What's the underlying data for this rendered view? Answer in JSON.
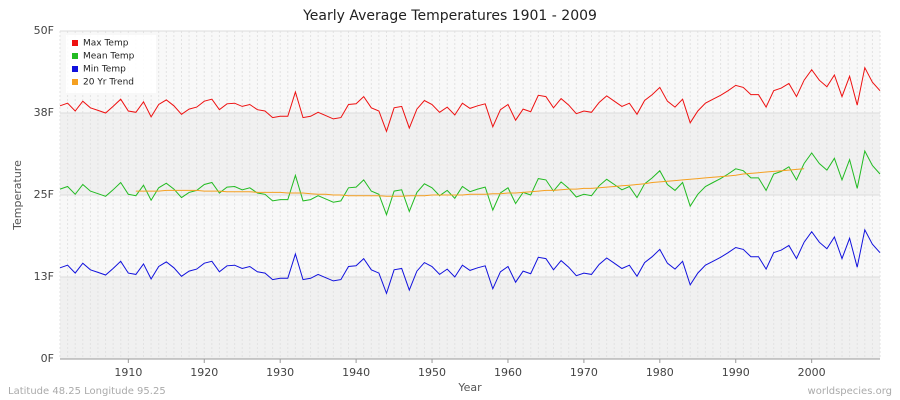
{
  "chart_data": {
    "type": "line",
    "title": "Yearly Average Temperatures 1901 - 2009",
    "x_label": "Year",
    "y_label": "Temperature",
    "footer_left": "Latitude 48.25 Longitude 95.25",
    "footer_right": "worldspecies.org",
    "x": [
      1901,
      1902,
      1903,
      1904,
      1905,
      1906,
      1907,
      1908,
      1909,
      1910,
      1911,
      1912,
      1913,
      1914,
      1915,
      1916,
      1917,
      1918,
      1919,
      1920,
      1921,
      1922,
      1923,
      1924,
      1925,
      1926,
      1927,
      1928,
      1929,
      1930,
      1931,
      1932,
      1933,
      1934,
      1935,
      1936,
      1937,
      1938,
      1939,
      1940,
      1941,
      1942,
      1943,
      1944,
      1945,
      1946,
      1947,
      1948,
      1949,
      1950,
      1951,
      1952,
      1953,
      1954,
      1955,
      1956,
      1957,
      1958,
      1959,
      1960,
      1961,
      1962,
      1963,
      1964,
      1965,
      1966,
      1967,
      1968,
      1969,
      1970,
      1971,
      1972,
      1973,
      1974,
      1975,
      1976,
      1977,
      1978,
      1979,
      1980,
      1981,
      1982,
      1983,
      1984,
      1985,
      1986,
      1987,
      1988,
      1989,
      1990,
      1991,
      1992,
      1993,
      1994,
      1995,
      1996,
      1997,
      1998,
      1999,
      2000,
      2001,
      2002,
      2003,
      2004,
      2005,
      2006,
      2007,
      2008,
      2009
    ],
    "series": [
      {
        "name": "Max Temp",
        "color": "#ee1111",
        "values": [
          38.6,
          39.0,
          37.8,
          39.3,
          38.3,
          37.9,
          37.5,
          38.5,
          39.6,
          37.8,
          37.6,
          39.2,
          36.9,
          38.8,
          39.5,
          38.6,
          37.3,
          38.1,
          38.4,
          39.3,
          39.6,
          38.0,
          38.9,
          39.0,
          38.5,
          38.8,
          38.0,
          37.8,
          36.8,
          37.0,
          37.0,
          40.7,
          36.8,
          37.0,
          37.6,
          37.1,
          36.6,
          36.8,
          38.8,
          38.9,
          40.0,
          38.3,
          37.8,
          34.7,
          38.3,
          38.5,
          35.2,
          38.1,
          39.4,
          38.8,
          37.6,
          38.4,
          37.2,
          39.0,
          38.2,
          38.6,
          38.9,
          35.4,
          38.0,
          38.8,
          36.4,
          38.1,
          37.7,
          40.2,
          40.0,
          38.3,
          39.7,
          38.7,
          37.4,
          37.8,
          37.6,
          39.1,
          40.1,
          39.3,
          38.5,
          39.0,
          37.3,
          39.4,
          40.3,
          41.4,
          39.3,
          38.4,
          39.6,
          36.0,
          37.8,
          39.0,
          39.6,
          40.2,
          40.9,
          41.7,
          41.4,
          40.3,
          40.3,
          38.4,
          40.9,
          41.3,
          42.0,
          40.0,
          42.5,
          44.1,
          42.5,
          41.5,
          43.3,
          40.0,
          43.1,
          38.7,
          44.4,
          42.2,
          40.9
        ]
      },
      {
        "name": "Mean Temp",
        "color": "#22bb22",
        "values": [
          25.9,
          26.3,
          25.1,
          26.6,
          25.6,
          25.2,
          24.8,
          25.8,
          26.9,
          25.1,
          24.9,
          26.5,
          24.2,
          26.1,
          26.8,
          25.9,
          24.6,
          25.4,
          25.7,
          26.6,
          26.9,
          25.3,
          26.2,
          26.3,
          25.8,
          26.1,
          25.3,
          25.1,
          24.1,
          24.3,
          24.3,
          28.0,
          24.1,
          24.3,
          24.9,
          24.4,
          23.9,
          24.1,
          26.1,
          26.2,
          27.3,
          25.6,
          25.1,
          22.0,
          25.6,
          25.8,
          22.5,
          25.4,
          26.7,
          26.1,
          24.9,
          25.7,
          24.5,
          26.3,
          25.5,
          25.9,
          26.2,
          22.7,
          25.3,
          26.1,
          23.7,
          25.4,
          25.0,
          27.5,
          27.3,
          25.6,
          27.0,
          26.0,
          24.7,
          25.1,
          24.9,
          26.4,
          27.4,
          26.6,
          25.8,
          26.3,
          24.6,
          26.7,
          27.6,
          28.7,
          26.6,
          25.7,
          26.9,
          23.3,
          25.1,
          26.3,
          26.9,
          27.5,
          28.2,
          29.0,
          28.7,
          27.6,
          27.6,
          25.7,
          28.2,
          28.6,
          29.3,
          27.3,
          29.8,
          31.4,
          29.8,
          28.8,
          30.6,
          27.3,
          30.4,
          26.0,
          31.7,
          29.5,
          28.2
        ]
      },
      {
        "name": "Min Temp",
        "color": "#1111dd",
        "values": [
          13.9,
          14.3,
          13.1,
          14.6,
          13.6,
          13.2,
          12.8,
          13.8,
          14.9,
          13.1,
          12.9,
          14.5,
          12.2,
          14.1,
          14.8,
          13.9,
          12.6,
          13.4,
          13.7,
          14.6,
          14.9,
          13.3,
          14.2,
          14.3,
          13.8,
          14.1,
          13.3,
          13.1,
          12.1,
          12.3,
          12.3,
          16.0,
          12.1,
          12.3,
          12.9,
          12.4,
          11.9,
          12.1,
          14.1,
          14.2,
          15.3,
          13.6,
          13.1,
          10.0,
          13.6,
          13.8,
          10.5,
          13.4,
          14.7,
          14.1,
          12.9,
          13.7,
          12.5,
          14.3,
          13.5,
          13.9,
          14.2,
          10.7,
          13.3,
          14.1,
          11.7,
          13.4,
          13.0,
          15.5,
          15.3,
          13.6,
          15.0,
          14.0,
          12.7,
          13.1,
          12.9,
          14.4,
          15.4,
          14.6,
          13.8,
          14.3,
          12.6,
          14.7,
          15.6,
          16.7,
          14.6,
          13.7,
          14.9,
          11.3,
          13.1,
          14.3,
          14.9,
          15.5,
          16.2,
          17.0,
          16.7,
          15.6,
          15.6,
          13.7,
          16.2,
          16.6,
          17.3,
          15.3,
          17.8,
          19.4,
          17.8,
          16.8,
          18.6,
          15.3,
          18.4,
          14.0,
          19.7,
          17.5,
          16.2
        ]
      },
      {
        "name": "20 Yr Trend",
        "color": "#f5a020",
        "values": [
          null,
          null,
          null,
          null,
          null,
          null,
          null,
          null,
          null,
          null,
          25.6,
          25.6,
          25.6,
          25.6,
          25.7,
          25.7,
          25.7,
          25.7,
          25.7,
          25.6,
          25.6,
          25.6,
          25.5,
          25.5,
          25.5,
          25.5,
          25.4,
          25.4,
          25.4,
          25.4,
          25.3,
          25.3,
          25.3,
          25.2,
          25.1,
          25.1,
          25.0,
          25.0,
          24.9,
          24.9,
          24.9,
          24.9,
          24.9,
          24.8,
          24.8,
          24.8,
          24.9,
          24.9,
          24.9,
          25.0,
          25.0,
          25.0,
          25.0,
          25.0,
          25.1,
          25.1,
          25.1,
          25.2,
          25.2,
          25.3,
          25.3,
          25.4,
          25.5,
          25.6,
          25.7,
          25.7,
          25.8,
          25.9,
          25.9,
          26.0,
          26.0,
          26.1,
          26.2,
          26.3,
          26.4,
          26.5,
          26.6,
          26.7,
          26.9,
          27.0,
          27.1,
          27.2,
          27.3,
          27.4,
          27.5,
          27.6,
          27.7,
          27.8,
          27.9,
          28.0,
          28.2,
          28.3,
          28.4,
          28.5,
          28.6,
          28.7,
          28.8,
          28.9,
          29.0,
          null,
          null,
          null,
          null,
          null,
          null,
          null,
          null,
          null,
          null
        ]
      }
    ],
    "xlim": [
      1901,
      2009
    ],
    "xticks": [
      1910,
      1920,
      1930,
      1940,
      1950,
      1960,
      1970,
      1980,
      1990,
      2000
    ],
    "ylim": [
      0,
      50
    ],
    "yticks": [
      {
        "value": 0,
        "label": "0F"
      },
      {
        "value": 12.5,
        "label": "13F"
      },
      {
        "value": 25,
        "label": "25F"
      },
      {
        "value": 37.5,
        "label": "38F"
      },
      {
        "value": 50,
        "label": "50F"
      }
    ],
    "grid": true,
    "legend": "top-left"
  }
}
